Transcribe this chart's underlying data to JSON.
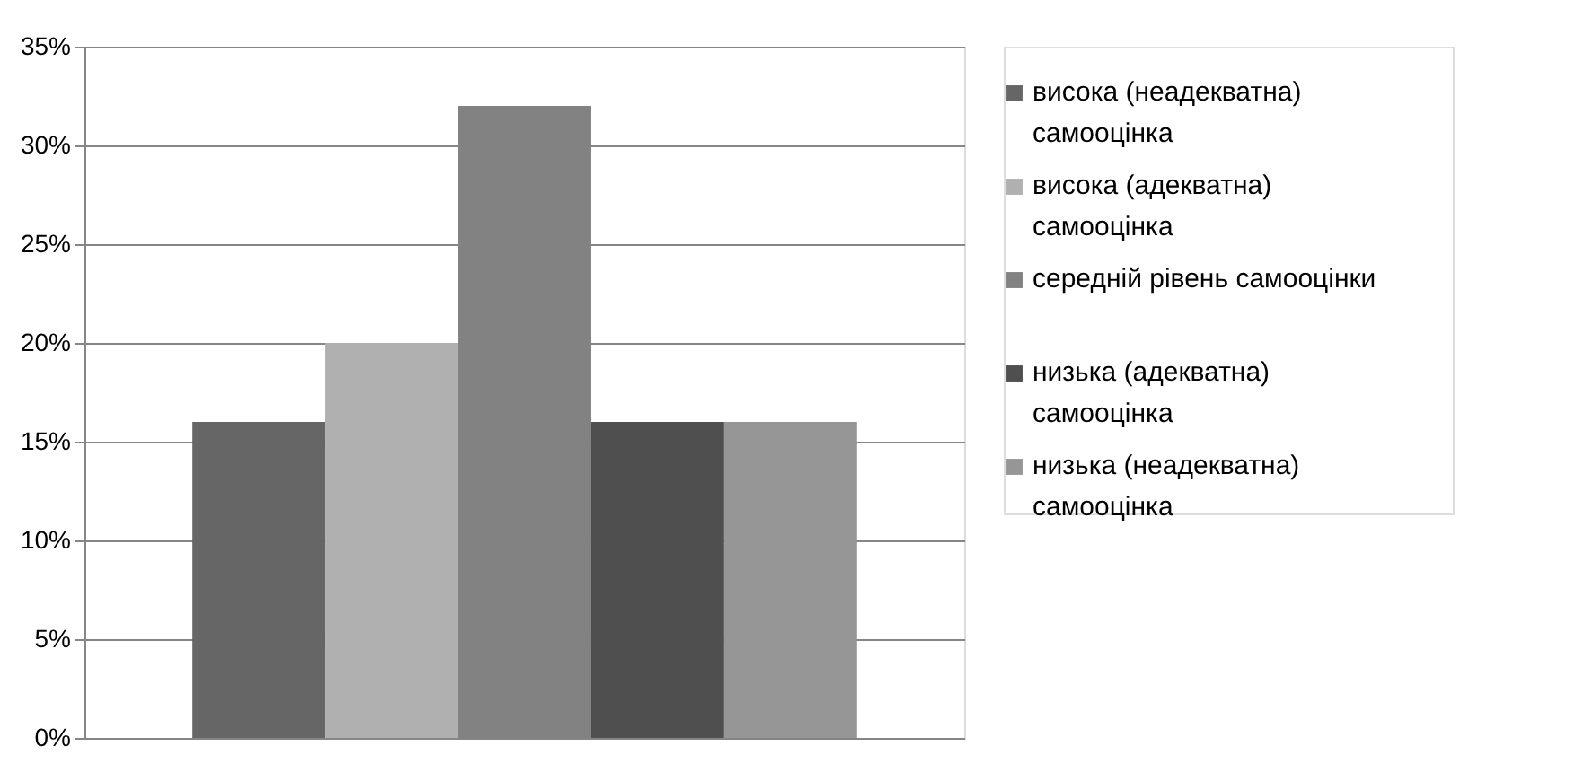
{
  "chart_data": {
    "type": "bar",
    "categories": [
      null
    ],
    "series": [
      {
        "name": "висока (неадекватна) самооцінка",
        "color": "#666666",
        "values": [
          16
        ]
      },
      {
        "name": "висока (адекватна) самооцінка",
        "color": "#b0b0b0",
        "values": [
          20
        ]
      },
      {
        "name": "середній рівень самооцінки",
        "color": "#828282",
        "values": [
          32
        ]
      },
      {
        "name": "низька (адекватна) самооцінка",
        "color": "#4f4f4f",
        "values": [
          16
        ]
      },
      {
        "name": "низька (неадекватна) самооцінка",
        "color": "#969696",
        "values": [
          16
        ]
      }
    ],
    "ylim": [
      0,
      35
    ],
    "yticks": [
      {
        "value": 0,
        "label": "0%"
      },
      {
        "value": 5,
        "label": "5%"
      },
      {
        "value": 10,
        "label": "10%"
      },
      {
        "value": 15,
        "label": "15%"
      },
      {
        "value": 20,
        "label": "20%"
      },
      {
        "value": 25,
        "label": "25%"
      },
      {
        "value": 30,
        "label": "30%"
      },
      {
        "value": 35,
        "label": "35%"
      }
    ],
    "grid": "y",
    "legend": "right"
  }
}
